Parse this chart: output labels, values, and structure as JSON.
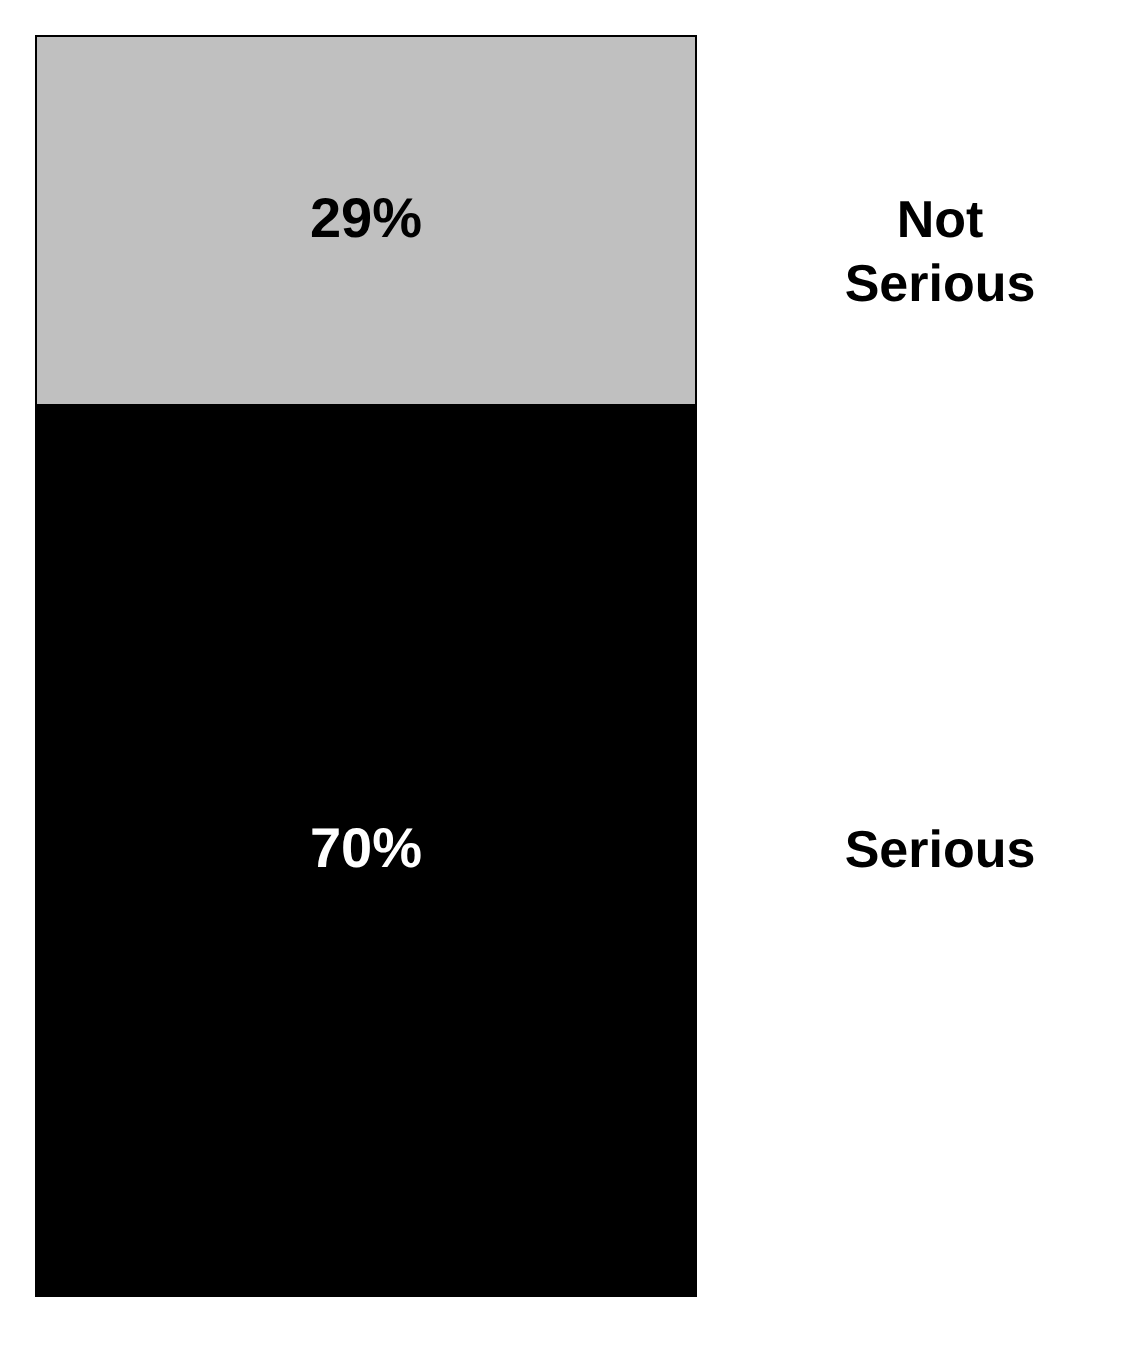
{
  "chart_data": {
    "type": "bar",
    "stacked": true,
    "categories": [
      null
    ],
    "series": [
      {
        "name": "Serious",
        "color": "#000000",
        "values": [
          70
        ],
        "value_labels": [
          "70%"
        ]
      },
      {
        "name": "Not Serious",
        "color": "#c0c0c0",
        "values": [
          29
        ],
        "value_labels": [
          "29%"
        ]
      }
    ]
  }
}
